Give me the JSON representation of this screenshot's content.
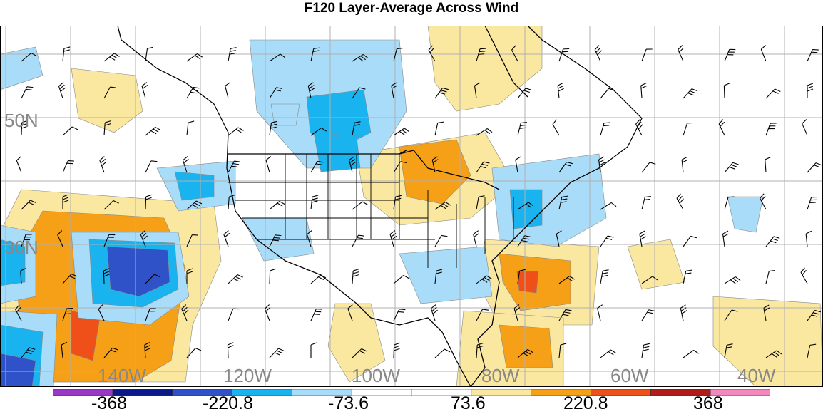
{
  "title": "F120 Layer-Average Across Wind",
  "lat_labels": [
    "50N",
    "30N"
  ],
  "lon_labels": [
    "140W",
    "120W",
    "100W",
    "80W",
    "60W",
    "40W"
  ],
  "colorbar": {
    "colors": [
      "#9a37c6",
      "#0a1a8a",
      "#2f52c8",
      "#19b4ef",
      "#a9dcf8",
      "#ffffff",
      "#ffffff",
      "#fbe8a0",
      "#f5a017",
      "#ef4f18",
      "#b01c1c",
      "#f288be"
    ],
    "labels": [
      "-368",
      "-220.8",
      "-73.6",
      "73.6",
      "220.8",
      "368"
    ]
  },
  "colors": {
    "neg_light": "#a9dcf8",
    "neg_mid": "#19b4ef",
    "neg_dark": "#2f52c8",
    "neg_darkest": "#0a1a8a",
    "pos_light": "#fbe8a0",
    "pos_mid": "#f5a017",
    "pos_dark": "#ef4f18"
  }
}
